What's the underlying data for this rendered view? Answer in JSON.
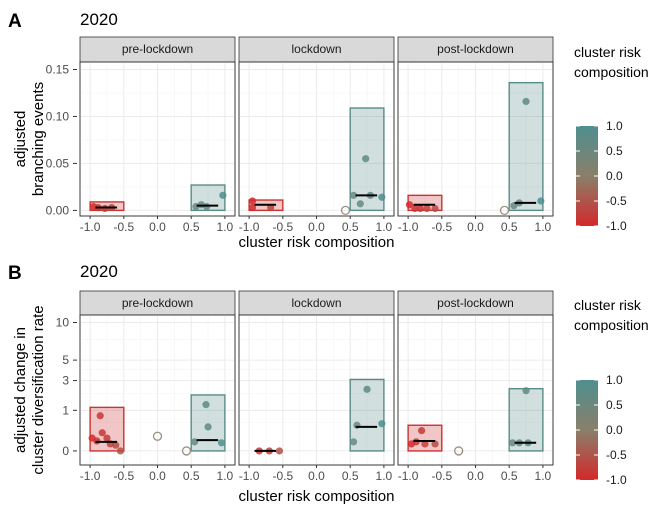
{
  "colors": {
    "high": "#4e8f8e",
    "mid": "#8a7f6a",
    "low": "#d3292b"
  },
  "legend": {
    "title_lines": [
      "cluster risk",
      "composition"
    ],
    "labels": [
      "1.0",
      "0.5",
      "0.0",
      "-0.5",
      "-1.0"
    ],
    "values": [
      1,
      0.5,
      0,
      -0.5,
      -1
    ]
  },
  "chart_data": [
    {
      "type": "scatter",
      "letter": "A",
      "title": "2020",
      "xlabel": "cluster risk composition",
      "ylabel_lines": [
        "adjusted",
        "branching events"
      ],
      "xlim": [
        -1.15,
        1.15
      ],
      "xticks": [
        -1.0,
        -0.5,
        0.0,
        0.5,
        1.0
      ],
      "xtick_labels": [
        "-1.0",
        "-0.5",
        "0.0",
        "0.5",
        "1.0"
      ],
      "ylim": [
        -0.006,
        0.158
      ],
      "yscale": "linear",
      "yticks": [
        0,
        0.05,
        0.1,
        0.15
      ],
      "ytick_labels": [
        "0.00",
        "0.05",
        "0.10",
        "0.15"
      ],
      "grid": true,
      "panels": [
        {
          "label": "pre-lockdown",
          "boxes": [
            {
              "x0": -1.0,
              "x1": -0.5,
              "ymin": 0,
              "ymax": 0.009,
              "median": 0.003,
              "color": -0.9
            },
            {
              "x0": 0.5,
              "x1": 1.0,
              "ymin": 0,
              "ymax": 0.027,
              "median": 0.005,
              "color": 0.8
            }
          ],
          "points": [
            {
              "x": -0.95,
              "y": 0.004,
              "c": -1.0
            },
            {
              "x": -0.88,
              "y": 0.003,
              "c": -0.9
            },
            {
              "x": -0.78,
              "y": 0.002,
              "c": -0.8
            },
            {
              "x": -0.68,
              "y": 0.003,
              "c": -0.7
            },
            {
              "x": 0.57,
              "y": 0.004,
              "c": 0.6
            },
            {
              "x": 0.65,
              "y": 0.006,
              "c": 0.65
            },
            {
              "x": 0.73,
              "y": 0.004,
              "c": 0.75
            },
            {
              "x": 0.97,
              "y": 0.016,
              "c": 1.0
            }
          ],
          "hollow": []
        },
        {
          "label": "lockdown",
          "boxes": [
            {
              "x0": -1.0,
              "x1": -0.5,
              "ymin": 0,
              "ymax": 0.011,
              "median": 0.006,
              "color": -0.9
            },
            {
              "x0": 0.5,
              "x1": 1.0,
              "ymin": 0,
              "ymax": 0.109,
              "median": 0.016,
              "color": 0.8
            }
          ],
          "points": [
            {
              "x": -0.95,
              "y": 0.01,
              "c": -1.0
            },
            {
              "x": -0.95,
              "y": 0.003,
              "c": -1.0
            },
            {
              "x": -0.68,
              "y": 0.003,
              "c": -0.7
            },
            {
              "x": 0.55,
              "y": 0.016,
              "c": 0.6
            },
            {
              "x": 0.65,
              "y": 0.007,
              "c": 0.65
            },
            {
              "x": 0.73,
              "y": 0.055,
              "c": 0.75
            },
            {
              "x": 0.8,
              "y": 0.016,
              "c": 0.8
            },
            {
              "x": 0.97,
              "y": 0.014,
              "c": 1.0
            }
          ],
          "hollow": [
            {
              "x": 0.43,
              "y": 0.0
            }
          ]
        },
        {
          "label": "post-lockdown",
          "boxes": [
            {
              "x0": -1.0,
              "x1": -0.5,
              "ymin": 0,
              "ymax": 0.016,
              "median": 0.006,
              "color": -0.9
            },
            {
              "x0": 0.5,
              "x1": 1.0,
              "ymin": 0,
              "ymax": 0.136,
              "median": 0.008,
              "color": 0.8
            }
          ],
          "points": [
            {
              "x": -0.98,
              "y": 0.006,
              "c": -1.0
            },
            {
              "x": -0.9,
              "y": 0.002,
              "c": -0.9
            },
            {
              "x": -0.82,
              "y": 0.002,
              "c": -0.85
            },
            {
              "x": -0.72,
              "y": 0.002,
              "c": -0.75
            },
            {
              "x": -0.6,
              "y": 0.002,
              "c": -0.6
            },
            {
              "x": 0.57,
              "y": 0.005,
              "c": 0.6
            },
            {
              "x": 0.65,
              "y": 0.008,
              "c": 0.65
            },
            {
              "x": 0.75,
              "y": 0.116,
              "c": 0.75
            },
            {
              "x": 0.97,
              "y": 0.01,
              "c": 1.0
            }
          ],
          "hollow": [
            {
              "x": 0.43,
              "y": 0.0
            }
          ]
        }
      ]
    },
    {
      "type": "scatter",
      "letter": "B",
      "title": "2020",
      "xlabel": "cluster risk composition",
      "ylabel_lines": [
        "adjusted change in",
        "cluster diversification rate"
      ],
      "xlim": [
        -1.15,
        1.15
      ],
      "xticks": [
        -1.0,
        -0.5,
        0.0,
        0.5,
        1.0
      ],
      "xtick_labels": [
        "-1.0",
        "-0.5",
        "0.0",
        "0.5",
        "1.0"
      ],
      "ylim": [
        -0.12,
        11.2
      ],
      "yscale": "sqrt",
      "yticks": [
        0,
        1,
        3,
        5,
        10
      ],
      "ytick_labels": [
        "0",
        "1",
        "3",
        "5",
        "10"
      ],
      "grid": true,
      "panels": [
        {
          "label": "pre-lockdown",
          "boxes": [
            {
              "x0": -1.0,
              "x1": -0.5,
              "ymin": 0,
              "ymax": 1.15,
              "median": 0.05,
              "color": -0.9
            },
            {
              "x0": 0.5,
              "x1": 1.0,
              "ymin": 0,
              "ymax": 1.9,
              "median": 0.07,
              "color": 0.8
            }
          ],
          "points": [
            {
              "x": -0.97,
              "y": 0.1,
              "c": -1.0
            },
            {
              "x": -0.9,
              "y": 0.06,
              "c": -0.95
            },
            {
              "x": -0.85,
              "y": 0.75,
              "c": -0.85
            },
            {
              "x": -0.82,
              "y": 0.2,
              "c": -0.85
            },
            {
              "x": -0.75,
              "y": 0.1,
              "c": -0.8
            },
            {
              "x": -0.7,
              "y": 0.03,
              "c": -0.7
            },
            {
              "x": -0.62,
              "y": 0.02,
              "c": -0.6
            },
            {
              "x": -0.55,
              "y": 0.0,
              "c": -0.55
            },
            {
              "x": 0.55,
              "y": 0.05,
              "c": 0.6
            },
            {
              "x": 0.72,
              "y": 1.3,
              "c": 0.75
            },
            {
              "x": 0.75,
              "y": 0.35,
              "c": 0.75
            },
            {
              "x": 0.95,
              "y": 0.04,
              "c": 1.0
            }
          ],
          "hollow": [
            {
              "x": 0.0,
              "y": 0.13
            },
            {
              "x": 0.43,
              "y": 0.0
            }
          ]
        },
        {
          "label": "lockdown",
          "boxes": [
            {
              "x0": -1.0,
              "x1": -0.5,
              "ymin": 0,
              "ymax": 0.0,
              "median": 0.0,
              "color": -0.9
            },
            {
              "x0": 0.5,
              "x1": 1.0,
              "ymin": 0,
              "ymax": 3.1,
              "median": 0.35,
              "color": 0.8
            }
          ],
          "points": [
            {
              "x": -0.85,
              "y": 0.0,
              "c": -0.9
            },
            {
              "x": -0.7,
              "y": 0.0,
              "c": -0.75
            },
            {
              "x": -0.55,
              "y": 0.0,
              "c": -0.55
            },
            {
              "x": 0.55,
              "y": 0.05,
              "c": 0.6
            },
            {
              "x": 0.6,
              "y": 0.4,
              "c": 0.6
            },
            {
              "x": 0.75,
              "y": 2.3,
              "c": 0.75
            },
            {
              "x": 0.97,
              "y": 0.45,
              "c": 1.0
            }
          ],
          "hollow": []
        },
        {
          "label": "post-lockdown",
          "boxes": [
            {
              "x0": -1.0,
              "x1": -0.5,
              "ymin": 0,
              "ymax": 0.4,
              "median": 0.06,
              "color": -0.9
            },
            {
              "x0": 0.5,
              "x1": 1.0,
              "ymin": 0,
              "ymax": 2.35,
              "median": 0.04,
              "color": 0.8
            }
          ],
          "points": [
            {
              "x": -0.95,
              "y": 0.03,
              "c": -1.0
            },
            {
              "x": -0.88,
              "y": 0.05,
              "c": -0.9
            },
            {
              "x": -0.8,
              "y": 0.25,
              "c": -0.8
            },
            {
              "x": -0.75,
              "y": 0.03,
              "c": -0.75
            },
            {
              "x": -0.6,
              "y": 0.03,
              "c": -0.6
            },
            {
              "x": 0.55,
              "y": 0.04,
              "c": 0.6
            },
            {
              "x": 0.65,
              "y": 0.04,
              "c": 0.65
            },
            {
              "x": 0.75,
              "y": 2.2,
              "c": 0.75
            },
            {
              "x": 0.78,
              "y": 0.04,
              "c": 0.8
            }
          ],
          "hollow": [
            {
              "x": -0.25,
              "y": 0.0
            }
          ]
        }
      ]
    }
  ]
}
